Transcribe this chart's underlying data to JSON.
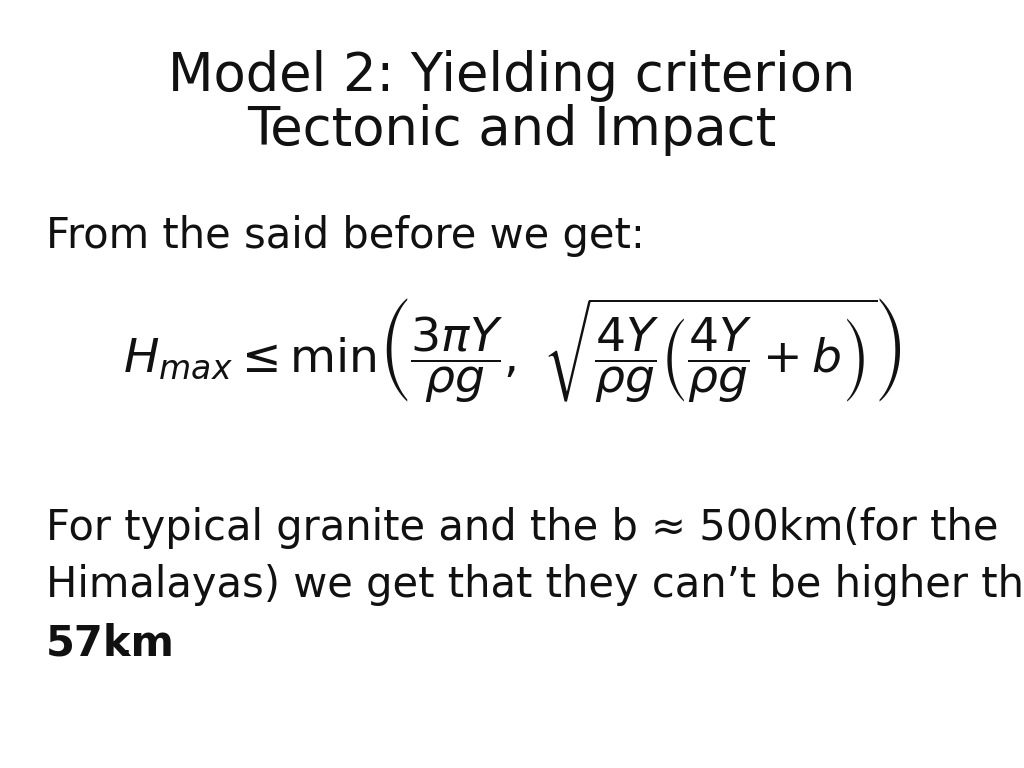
{
  "title_line1": "Model 2: Yielding criterion",
  "title_line2": "Tectonic and Impact",
  "title_fontsize": 38,
  "title_color": "#111111",
  "background_color": "#ffffff",
  "intro_text": "From the said before we get:",
  "intro_fontsize": 30,
  "formula_fontsize": 34,
  "body_text_line1": "For typical granite and the b ≈ 500km(for the",
  "body_text_line2": "Himalayas) we get that they can’t be higher than",
  "body_text_bold": "57km",
  "body_text_end": ".",
  "body_fontsize": 30,
  "text_color": "#111111",
  "figwidth": 10.24,
  "figheight": 7.68,
  "dpi": 100
}
